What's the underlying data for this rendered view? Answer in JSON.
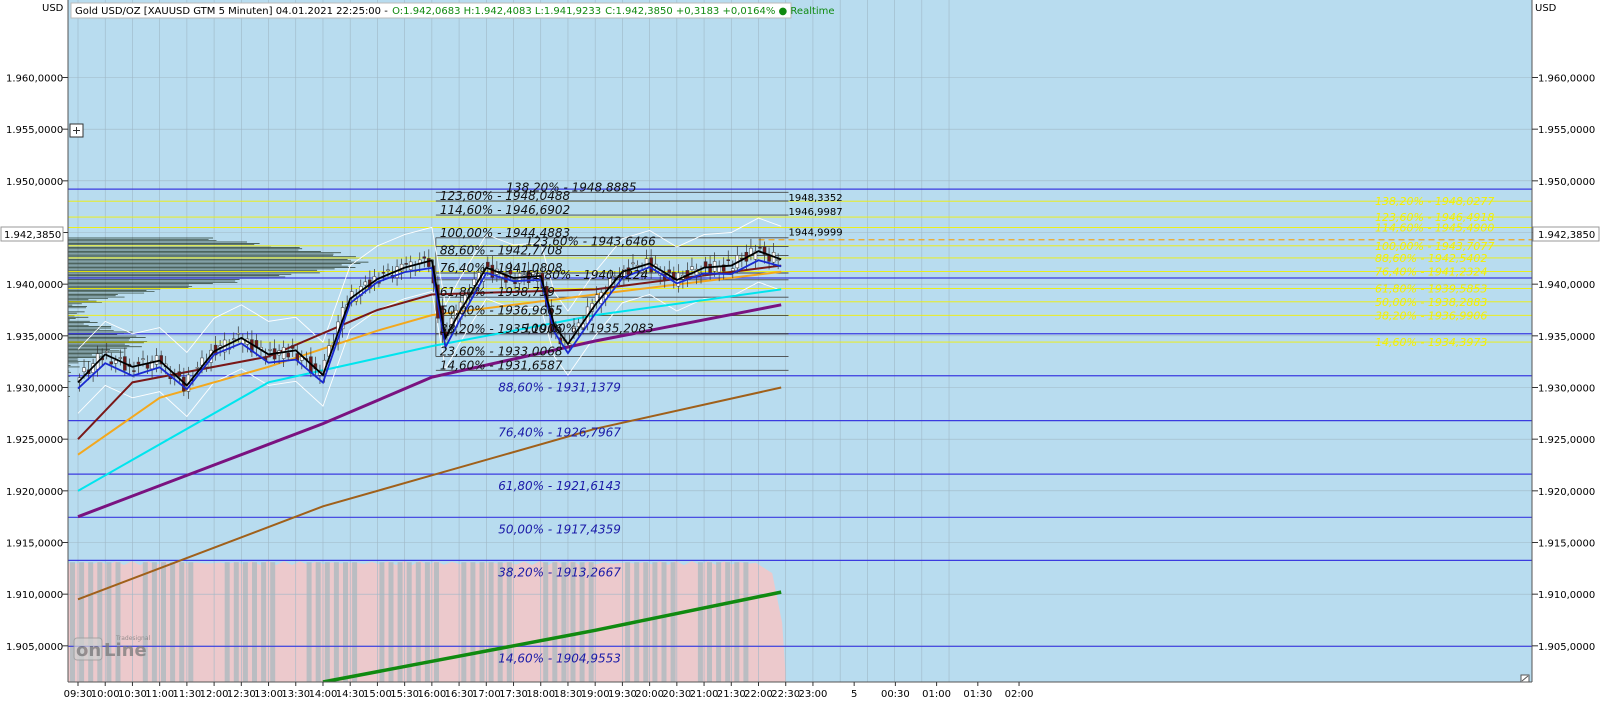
{
  "header": {
    "instrument": "Gold USD/OZ [XAUUSD GTM 5 Minuten] 04.01.2021 22:25:00 -",
    "ohlc": "O:1.942,0683 H:1.942,4083 L:1.941,9233",
    "close": "C:1.942,3850 +0,3183 +0,0164% ● Realtime"
  },
  "axis": {
    "currency_left": "USD",
    "currency_right": "USD",
    "current_price_label": "1.942,3850",
    "expand_icon": "plus-square-icon",
    "corner_icon": "resize-corner-icon",
    "logo": "Tradesignal online"
  },
  "colors": {
    "plot_bg": "#b8dcef",
    "future_bg": "#bde0f5",
    "volume_fill": "#ecc9cc",
    "blue_fib": "#3b3be0",
    "yellow_fib": "#f2f000",
    "ema_cyan": "#00e5ee",
    "ema_purple": "#7a1280",
    "ema_brown": "#a0601a",
    "ema_green": "#108a10",
    "ema_orange": "#f3a81e",
    "ema_maroon": "#7a1818"
  },
  "chart_data": {
    "type": "candlestick",
    "title": "Gold USD/OZ [XAUUSD GTM 5 Minuten] 04.01.2021 22:25:00",
    "xlabel": "",
    "ylabel": "USD",
    "ylim": [
      1901.5,
      1967.5
    ],
    "y_ticks": [
      "1.960,0000",
      "1.955,0000",
      "1.950,0000",
      "1.945,0000",
      "1.940,0000",
      "1.935,0000",
      "1.930,0000",
      "1.925,0000",
      "1.920,0000",
      "1.915,0000",
      "1.910,0000",
      "1.905,0000"
    ],
    "x_ticks": [
      "09:30",
      "10:00",
      "10:30",
      "11:00",
      "11:30",
      "12:00",
      "12:30",
      "13:00",
      "13:30",
      "14:00",
      "14:30",
      "15:00",
      "15:30",
      "16:00",
      "16:30",
      "17:00",
      "17:30",
      "18:00",
      "18:30",
      "19:00",
      "19:30",
      "20:00",
      "20:30",
      "21:00",
      "21:30",
      "22:00",
      "22:30",
      "23:00",
      "5",
      "00:30",
      "01:00",
      "01:30",
      "02:00"
    ],
    "last_price": 1942.385,
    "close_path": [
      {
        "t": "09:30",
        "v": 1930.5
      },
      {
        "t": "10:00",
        "v": 1933.2
      },
      {
        "t": "10:30",
        "v": 1932.0
      },
      {
        "t": "11:00",
        "v": 1932.6
      },
      {
        "t": "11:30",
        "v": 1930.2
      },
      {
        "t": "12:00",
        "v": 1933.5
      },
      {
        "t": "12:30",
        "v": 1934.8
      },
      {
        "t": "13:00",
        "v": 1933.2
      },
      {
        "t": "13:30",
        "v": 1933.6
      },
      {
        "t": "14:00",
        "v": 1931.2
      },
      {
        "t": "14:30",
        "v": 1938.6
      },
      {
        "t": "15:00",
        "v": 1940.5
      },
      {
        "t": "15:30",
        "v": 1941.6
      },
      {
        "t": "16:00",
        "v": 1942.3
      },
      {
        "t": "16:15",
        "v": 1934.8
      },
      {
        "t": "16:30",
        "v": 1937.2
      },
      {
        "t": "17:00",
        "v": 1941.6
      },
      {
        "t": "17:30",
        "v": 1940.6
      },
      {
        "t": "18:00",
        "v": 1940.8
      },
      {
        "t": "18:15",
        "v": 1936.0
      },
      {
        "t": "18:30",
        "v": 1934.2
      },
      {
        "t": "19:00",
        "v": 1938.0
      },
      {
        "t": "19:30",
        "v": 1941.2
      },
      {
        "t": "20:00",
        "v": 1942.0
      },
      {
        "t": "20:30",
        "v": 1940.4
      },
      {
        "t": "21:00",
        "v": 1941.6
      },
      {
        "t": "21:30",
        "v": 1941.8
      },
      {
        "t": "22:00",
        "v": 1943.2
      },
      {
        "t": "22:25",
        "v": 1942.4
      }
    ],
    "moving_averages": [
      {
        "color": "#00e5ee",
        "points": [
          [
            "09:30",
            1920.0
          ],
          [
            "13:00",
            1930.5
          ],
          [
            "16:00",
            1934.0
          ],
          [
            "19:00",
            1937.0
          ],
          [
            "22:25",
            1939.5
          ]
        ]
      },
      {
        "color": "#7a1280",
        "points": [
          [
            "09:30",
            1917.5
          ],
          [
            "12:00",
            1922.5
          ],
          [
            "14:00",
            1926.5
          ],
          [
            "16:00",
            1931.0
          ],
          [
            "19:00",
            1934.5
          ],
          [
            "22:25",
            1938.0
          ]
        ]
      },
      {
        "color": "#a0601a",
        "points": [
          [
            "09:30",
            1909.5
          ],
          [
            "12:00",
            1914.5
          ],
          [
            "14:00",
            1918.5
          ],
          [
            "16:00",
            1921.5
          ],
          [
            "19:00",
            1926.0
          ],
          [
            "22:25",
            1930.0
          ]
        ]
      },
      {
        "color": "#108a10",
        "points": [
          [
            "14:00",
            1901.5
          ],
          [
            "16:00",
            1903.5
          ],
          [
            "19:00",
            1906.5
          ],
          [
            "22:25",
            1910.2
          ]
        ]
      },
      {
        "color": "#f3a81e",
        "points": [
          [
            "09:30",
            1923.5
          ],
          [
            "11:00",
            1929.0
          ],
          [
            "13:00",
            1932.0
          ],
          [
            "15:00",
            1935.5
          ],
          [
            "16:00",
            1937.0
          ],
          [
            "19:00",
            1939.0
          ],
          [
            "22:25",
            1941.2
          ]
        ]
      },
      {
        "color": "#7a1818",
        "points": [
          [
            "09:30",
            1925.0
          ],
          [
            "10:30",
            1930.5
          ],
          [
            "13:00",
            1933.0
          ],
          [
            "15:00",
            1937.5
          ],
          [
            "16:00",
            1939.0
          ],
          [
            "19:00",
            1939.5
          ],
          [
            "22:25",
            1941.8
          ]
        ]
      }
    ],
    "fib_blue": [
      {
        "label": "88,60% - 1931,1379",
        "value": 1931.1379
      },
      {
        "label": "76,40% - 1926,7967",
        "value": 1926.7967
      },
      {
        "label": "61,80% - 1921,6143",
        "value": 1921.6143
      },
      {
        "label": "50,00% - 1917,4359",
        "value": 1917.4359
      },
      {
        "label": "38,20% - 1913,2667",
        "value": 1913.2667
      },
      {
        "label": "14,60% - 1904,9553",
        "value": 1904.9553
      }
    ],
    "fib_dark": [
      {
        "label": "138,20% - 1948,8885",
        "value": 1948.8885
      },
      {
        "label": "123,60% - 1948,0488",
        "value": 1948.0488
      },
      {
        "label": "114,60% - 1946,6902",
        "value": 1946.6902
      },
      {
        "label": "100,00% - 1944,4883",
        "value": 1944.4883
      },
      {
        "label": "88,60% - 1942,7708",
        "value": 1942.7708
      },
      {
        "label": "123,60% - 1943,6466",
        "value": 1943.6466
      },
      {
        "label": "76,40% - 1941,0808",
        "value": 1941.0808
      },
      {
        "label": "61,80% - 1938,739",
        "value": 1938.739
      },
      {
        "label": "50,00% - 1936,9665",
        "value": 1936.9665
      },
      {
        "label": "38,20% - 1935,1906",
        "value": 1935.1906
      },
      {
        "label": "100,00% - 1935,2083",
        "value": 1935.2083
      },
      {
        "label": "23,60% - 1933,0068",
        "value": 1933.0068
      },
      {
        "label": "14,60% - 1931,6587",
        "value": 1931.6587
      },
      {
        "label": "61,80% - 1940,4224",
        "value": 1940.4224
      }
    ],
    "fib_yellow": [
      {
        "label": "138,20% - 1948,0277",
        "value": 1948.0277
      },
      {
        "label": "123,60% - 1946,4918",
        "value": 1946.4918
      },
      {
        "label": "114,60% - 1945,4900",
        "value": 1945.49
      },
      {
        "label": "100,00% - 1943,7077",
        "value": 1943.7077
      },
      {
        "label": "88,60% - 1942,5402",
        "value": 1942.5402
      },
      {
        "label": "76,40% - 1941,2324",
        "value": 1941.2324
      },
      {
        "label": "61,80% - 1939,5853",
        "value": 1939.5853
      },
      {
        "label": "50,00% - 1938,2883",
        "value": 1938.2883
      },
      {
        "label": "38,20% - 1936,9906",
        "value": 1936.9906
      },
      {
        "label": "14,60% - 1934,3973",
        "value": 1934.3973
      }
    ],
    "price_marks": [
      {
        "label": "1948,3352",
        "value": 1948.3352
      },
      {
        "label": "1946,9987",
        "value": 1946.9987
      },
      {
        "label": "1944,9999",
        "value": 1944.9999
      }
    ]
  }
}
